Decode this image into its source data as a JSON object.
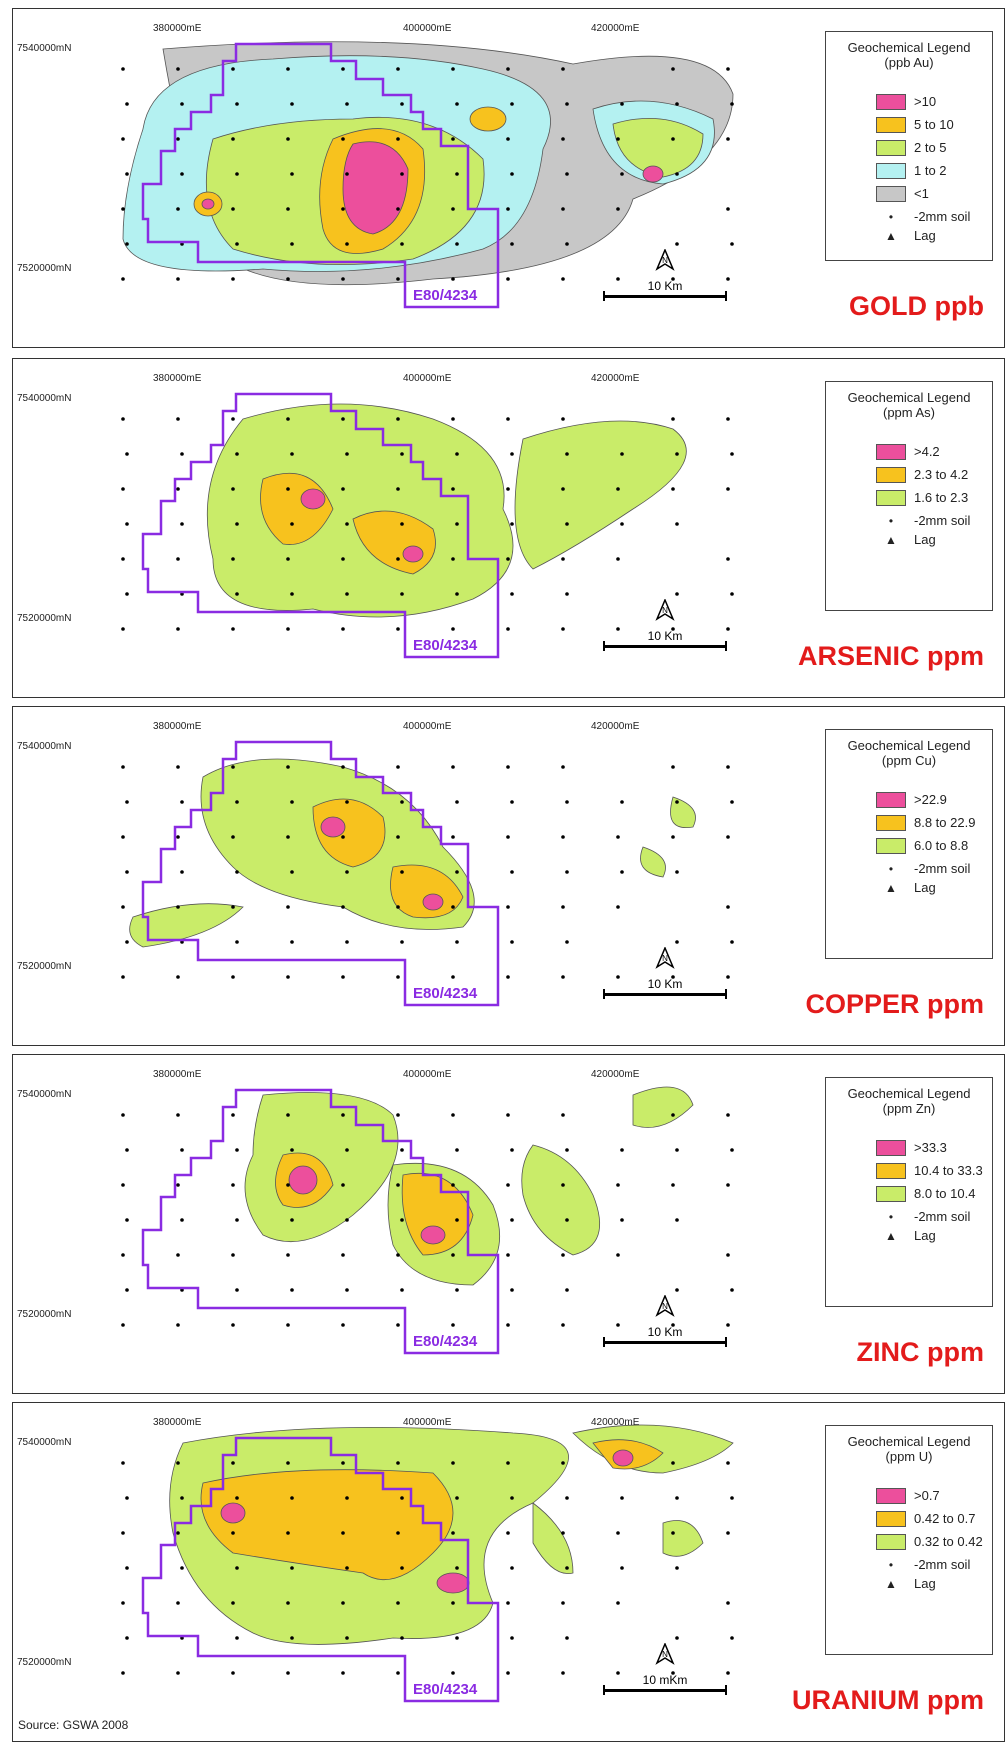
{
  "panels": [
    {
      "title": "GOLD ppb",
      "legend_title": "Geochemical Legend",
      "legend_unit": "(ppb Au)",
      "classes": [
        {
          "label": ">10",
          "color": "#ec4f9c"
        },
        {
          "label": "5 to 10",
          "color": "#f7c21e"
        },
        {
          "label": "2 to 5",
          "color": "#c9ec69"
        },
        {
          "label": "1 to 2",
          "color": "#b4f1f1"
        },
        {
          "label": "<1",
          "color": "#c7c7c7"
        }
      ]
    },
    {
      "title": "ARSENIC ppm",
      "legend_title": "Geochemical Legend",
      "legend_unit": "(ppm As)",
      "classes": [
        {
          "label": ">4.2",
          "color": "#ec4f9c"
        },
        {
          "label": "2.3 to 4.2",
          "color": "#f7c21e"
        },
        {
          "label": "1.6 to 2.3",
          "color": "#c9ec69"
        }
      ]
    },
    {
      "title": "COPPER ppm",
      "legend_title": "Geochemical Legend",
      "legend_unit": "(ppm Cu)",
      "classes": [
        {
          "label": ">22.9",
          "color": "#ec4f9c"
        },
        {
          "label": "8.8 to 22.9",
          "color": "#f7c21e"
        },
        {
          "label": "6.0 to 8.8",
          "color": "#c9ec69"
        }
      ]
    },
    {
      "title": "ZINC ppm",
      "legend_title": "Geochemical Legend",
      "legend_unit": "(ppm Zn)",
      "classes": [
        {
          "label": ">33.3",
          "color": "#ec4f9c"
        },
        {
          "label": "10.4 to 33.3",
          "color": "#f7c21e"
        },
        {
          "label": "8.0 to 10.4",
          "color": "#c9ec69"
        }
      ]
    },
    {
      "title": "URANIUM ppm",
      "legend_title": "Geochemical Legend",
      "legend_unit": "(ppm U)",
      "classes": [
        {
          "label": ">0.7",
          "color": "#ec4f9c"
        },
        {
          "label": "0.42 to 0.7",
          "color": "#f7c21e"
        },
        {
          "label": "0.32 to 0.42",
          "color": "#c9ec69"
        }
      ]
    }
  ],
  "symbols": {
    "soil": "-2mm soil",
    "lag": "Lag"
  },
  "easting_labels": [
    "380000mE",
    "400000mE",
    "420000mE"
  ],
  "northing_labels": [
    "7540000mN",
    "7520000mN"
  ],
  "tenement_label": "E80/4234",
  "scale_labels": [
    "10 Km",
    "10 Km",
    "10 Km",
    "10 Km",
    "10 mKm"
  ],
  "source": "Source: GSWA 2008",
  "colors": {
    "tenement": "#8a2be2",
    "title": "#e31b1b"
  }
}
